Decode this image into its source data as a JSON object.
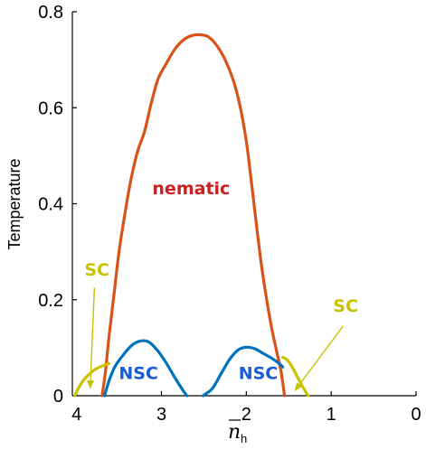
{
  "chart_data": {
    "type": "line",
    "xlabel": "n",
    "xlabel_subscript": "h",
    "ylabel": "Temperature",
    "xlim": [
      4.05,
      0
    ],
    "ylim": [
      0,
      0.8
    ],
    "x_reversed": true,
    "grid": false,
    "x_ticks": [
      {
        "value": 4,
        "label": "4"
      },
      {
        "value": 3,
        "label": "3"
      },
      {
        "value": 2,
        "label": "2"
      },
      {
        "value": 1,
        "label": "1"
      },
      {
        "value": 0,
        "label": "0"
      }
    ],
    "y_ticks": [
      {
        "value": 0,
        "label": "0"
      },
      {
        "value": 0.2,
        "label": "0.2"
      },
      {
        "value": 0.4,
        "label": "0.4"
      },
      {
        "value": 0.6,
        "label": "0.6"
      },
      {
        "value": 0.8,
        "label": "0.8"
      }
    ],
    "series": [
      {
        "key": "nematic",
        "color": "#d95319",
        "points": [
          [
            3.7,
            0.0
          ],
          [
            3.66,
            0.05
          ],
          [
            3.62,
            0.12
          ],
          [
            3.56,
            0.21
          ],
          [
            3.5,
            0.3
          ],
          [
            3.43,
            0.38
          ],
          [
            3.36,
            0.45
          ],
          [
            3.28,
            0.51
          ],
          [
            3.2,
            0.55
          ],
          [
            3.12,
            0.61
          ],
          [
            3.04,
            0.66
          ],
          [
            2.95,
            0.69
          ],
          [
            2.85,
            0.72
          ],
          [
            2.75,
            0.74
          ],
          [
            2.65,
            0.75
          ],
          [
            2.55,
            0.752
          ],
          [
            2.45,
            0.748
          ],
          [
            2.35,
            0.73
          ],
          [
            2.25,
            0.7
          ],
          [
            2.15,
            0.655
          ],
          [
            2.07,
            0.6
          ],
          [
            2.0,
            0.53
          ],
          [
            1.95,
            0.46
          ],
          [
            1.91,
            0.4
          ],
          [
            1.87,
            0.34
          ],
          [
            1.82,
            0.27
          ],
          [
            1.76,
            0.2
          ],
          [
            1.7,
            0.14
          ],
          [
            1.64,
            0.09
          ],
          [
            1.59,
            0.05
          ],
          [
            1.55,
            0.0
          ]
        ]
      },
      {
        "key": "nsc",
        "color": "#0072bd",
        "points": [
          [
            3.67,
            0.0
          ],
          [
            3.62,
            0.03
          ],
          [
            3.55,
            0.06
          ],
          [
            3.45,
            0.085
          ],
          [
            3.35,
            0.105
          ],
          [
            3.25,
            0.114
          ],
          [
            3.15,
            0.112
          ],
          [
            3.05,
            0.095
          ],
          [
            2.95,
            0.07
          ],
          [
            2.85,
            0.04
          ],
          [
            2.75,
            0.012
          ],
          [
            2.7,
            0.0
          ]
        ]
      },
      {
        "key": "nsc",
        "color": "#0072bd",
        "points": [
          [
            2.51,
            0.0
          ],
          [
            2.4,
            0.015
          ],
          [
            2.3,
            0.045
          ],
          [
            2.2,
            0.075
          ],
          [
            2.1,
            0.095
          ],
          [
            2.0,
            0.101
          ],
          [
            1.9,
            0.098
          ],
          [
            1.8,
            0.088
          ],
          [
            1.7,
            0.078
          ],
          [
            1.62,
            0.068
          ],
          [
            1.57,
            0.06
          ]
        ]
      },
      {
        "key": "sc",
        "color": "#c8c200",
        "points": [
          [
            4.02,
            0.0
          ],
          [
            3.98,
            0.015
          ],
          [
            3.92,
            0.032
          ],
          [
            3.85,
            0.045
          ],
          [
            3.78,
            0.055
          ],
          [
            3.7,
            0.062
          ],
          [
            3.62,
            0.067
          ]
        ]
      },
      {
        "key": "sc",
        "color": "#c8c200",
        "points": [
          [
            1.57,
            0.08
          ],
          [
            1.52,
            0.075
          ],
          [
            1.46,
            0.06
          ],
          [
            1.4,
            0.04
          ],
          [
            1.34,
            0.02
          ],
          [
            1.29,
            0.005
          ],
          [
            1.27,
            0.0
          ]
        ]
      }
    ],
    "annotations": [
      {
        "key": "nematic",
        "text": "nematic",
        "x": 2.65,
        "y": 0.42,
        "color": "#cc2020"
      },
      {
        "key": "nsc-left",
        "text": "NSC",
        "x": 3.27,
        "y": 0.035,
        "color": "#1a5bd6"
      },
      {
        "key": "nsc-right",
        "text": "NSC",
        "x": 1.86,
        "y": 0.035,
        "color": "#1a5bd6"
      },
      {
        "key": "sc-left",
        "text": "SC",
        "x": 3.76,
        "y": 0.25,
        "color": "#c8c200"
      },
      {
        "key": "sc-right",
        "text": "SC",
        "x": 0.83,
        "y": 0.175,
        "color": "#c8c200"
      }
    ],
    "arrows": [
      {
        "key": "sc-left-arrow",
        "from": [
          3.79,
          0.225
        ],
        "to": [
          3.84,
          0.015
        ],
        "color": "#c8c200"
      },
      {
        "key": "sc-right-arrow",
        "from": [
          0.86,
          0.145
        ],
        "to": [
          1.43,
          0.01
        ],
        "color": "#c8c200"
      }
    ]
  }
}
